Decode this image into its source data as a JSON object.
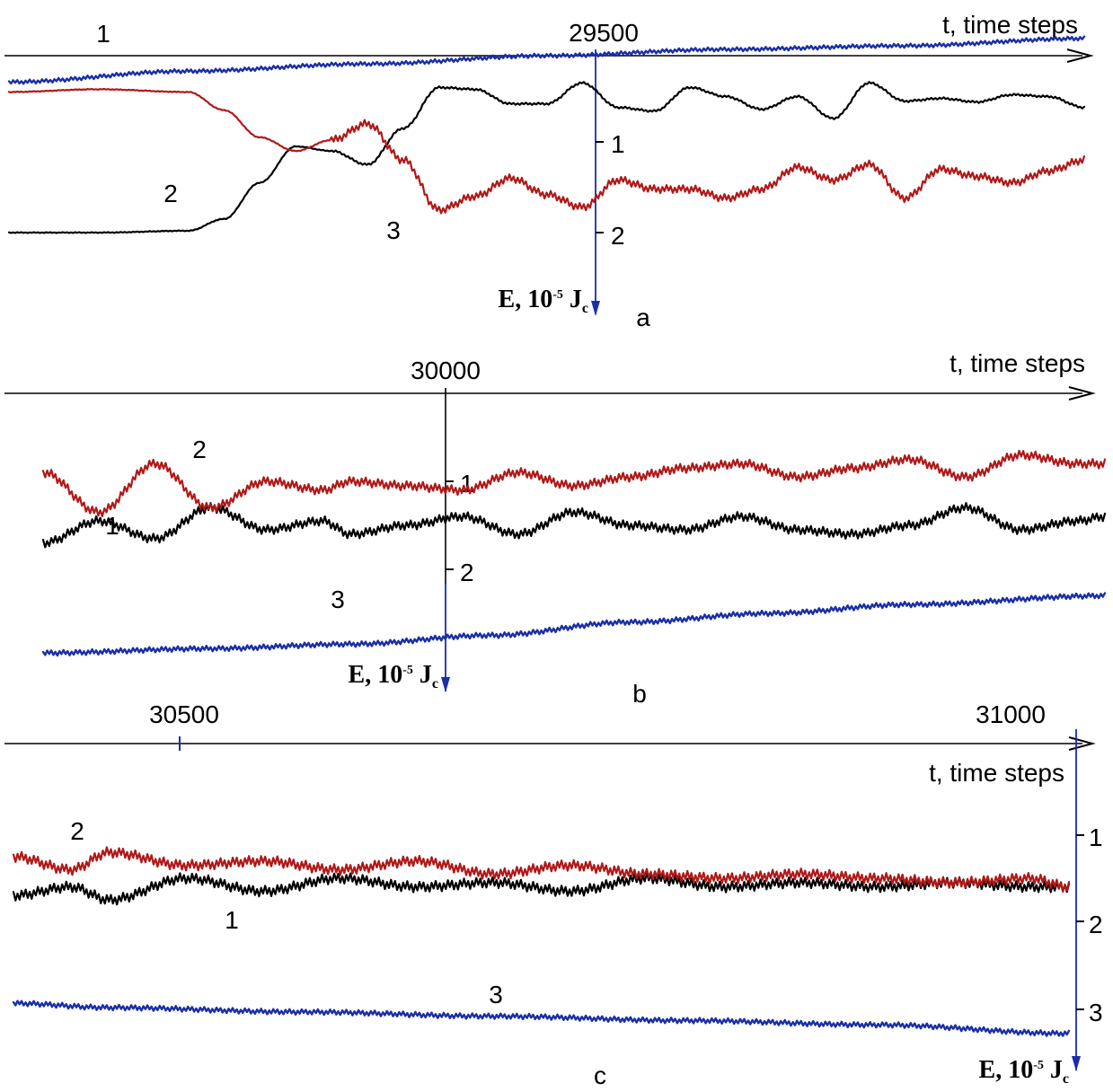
{
  "chart_data": [
    {
      "type": "line",
      "panel_label": "a",
      "xlabel": "t, time steps",
      "ylabel": "E, 10^-5 J_c",
      "x_tick_label": "29500",
      "y_tick_labels": [
        "1",
        "2"
      ],
      "colors": {
        "1": "#000000",
        "2": "#b01818",
        "3": "#1a2ea8"
      },
      "series": [
        {
          "name": "1",
          "x": [
            29200,
            29250,
            29300,
            29320,
            29340,
            29360,
            29380,
            29400,
            29420,
            29440,
            29460,
            29480,
            29500,
            29520,
            29540,
            29560,
            29580,
            29600,
            29620,
            29640,
            29660,
            29680,
            29700,
            29720,
            29740,
            29760,
            29780,
            29800
          ],
          "values": [
            2.0,
            2.0,
            1.98,
            1.85,
            1.45,
            1.05,
            1.1,
            1.25,
            0.85,
            0.4,
            0.42,
            0.58,
            0.58,
            0.35,
            0.62,
            0.66,
            0.4,
            0.5,
            0.64,
            0.5,
            0.74,
            0.35,
            0.55,
            0.52,
            0.56,
            0.48,
            0.5,
            0.62
          ]
        },
        {
          "name": "2",
          "x": [
            29200,
            29250,
            29300,
            29320,
            29340,
            29360,
            29380,
            29400,
            29420,
            29440,
            29460,
            29480,
            29500,
            29520,
            29540,
            29560,
            29580,
            29600,
            29620,
            29640,
            29660,
            29680,
            29700,
            29720,
            29740,
            29760,
            29780,
            29800
          ],
          "values": [
            0.45,
            0.42,
            0.45,
            0.65,
            0.95,
            1.1,
            0.98,
            0.8,
            1.2,
            1.75,
            1.6,
            1.4,
            1.58,
            1.72,
            1.42,
            1.52,
            1.52,
            1.62,
            1.52,
            1.28,
            1.42,
            1.25,
            1.62,
            1.3,
            1.38,
            1.45,
            1.32,
            1.2
          ]
        },
        {
          "name": "3",
          "x": [
            29200,
            29300,
            29400,
            29500,
            29600,
            29700,
            29800
          ],
          "values": [
            0.34,
            0.22,
            0.14,
            0.05,
            -0.02,
            -0.06,
            -0.14
          ]
        }
      ]
    },
    {
      "type": "line",
      "panel_label": "b",
      "xlabel": "t, time steps",
      "ylabel": "E, 10^-5 J_c",
      "x_tick_label": "30000",
      "y_tick_labels": [
        "1",
        "2"
      ],
      "colors": {
        "1": "#000000",
        "2": "#b01818",
        "3": "#1a2ea8"
      },
      "series": [
        {
          "name": "1",
          "x": [
            29780,
            29820,
            29860,
            29900,
            29940,
            29980,
            30000,
            30040,
            30080,
            30120,
            30160,
            30200,
            30240,
            30280,
            30320,
            30360,
            30400,
            30440,
            30480,
            30520,
            30540
          ],
          "values": [
            1.7,
            1.45,
            1.65,
            1.3,
            1.55,
            1.45,
            1.6,
            1.5,
            1.4,
            1.6,
            1.35,
            1.5,
            1.55,
            1.4,
            1.55,
            1.6,
            1.5,
            1.3,
            1.55,
            1.45,
            1.4
          ]
        },
        {
          "name": "2",
          "x": [
            29780,
            29820,
            29860,
            29900,
            29940,
            29980,
            30000,
            30040,
            30080,
            30120,
            30160,
            30200,
            30240,
            30280,
            30320,
            30360,
            30400,
            30440,
            30480,
            30520,
            30540
          ],
          "values": [
            0.9,
            1.35,
            0.8,
            1.3,
            1.0,
            1.1,
            1.0,
            1.05,
            1.1,
            0.9,
            1.05,
            0.95,
            0.85,
            0.8,
            0.95,
            0.85,
            0.75,
            0.95,
            0.7,
            0.8,
            0.8
          ]
        },
        {
          "name": "3",
          "x": [
            29780,
            29900,
            30000,
            30100,
            30200,
            30300,
            30400,
            30540
          ],
          "values": [
            2.95,
            2.9,
            2.85,
            2.75,
            2.6,
            2.5,
            2.4,
            2.3
          ]
        }
      ]
    },
    {
      "type": "line",
      "panel_label": "c",
      "xlabel": "t, time steps",
      "ylabel": "E, 10^-5 J_c",
      "x_tick_labels": [
        "30500",
        "31000"
      ],
      "y_tick_labels": [
        "1",
        "2",
        "3"
      ],
      "colors": {
        "1": "#000000",
        "2": "#b01818",
        "3": "#1a2ea8"
      },
      "series": [
        {
          "name": "1",
          "x": [
            30450,
            30480,
            30500,
            30540,
            30580,
            30620,
            30660,
            30700,
            30740,
            30780,
            30820,
            30860,
            30900,
            30940,
            30980,
            31000
          ],
          "values": [
            1.7,
            1.6,
            1.75,
            1.5,
            1.65,
            1.5,
            1.6,
            1.55,
            1.65,
            1.5,
            1.6,
            1.55,
            1.6,
            1.55,
            1.6,
            1.6
          ]
        },
        {
          "name": "2",
          "x": [
            30450,
            30480,
            30500,
            30540,
            30580,
            30620,
            30660,
            30700,
            30740,
            30780,
            30820,
            30860,
            30900,
            30940,
            30980,
            31000
          ],
          "values": [
            1.25,
            1.4,
            1.2,
            1.35,
            1.3,
            1.4,
            1.3,
            1.45,
            1.35,
            1.45,
            1.5,
            1.45,
            1.5,
            1.55,
            1.5,
            1.6
          ]
        },
        {
          "name": "3",
          "x": [
            30450,
            30500,
            30600,
            30700,
            30800,
            30900,
            31000
          ],
          "values": [
            2.95,
            3.0,
            3.05,
            3.1,
            3.15,
            3.2,
            3.3
          ]
        }
      ]
    }
  ]
}
